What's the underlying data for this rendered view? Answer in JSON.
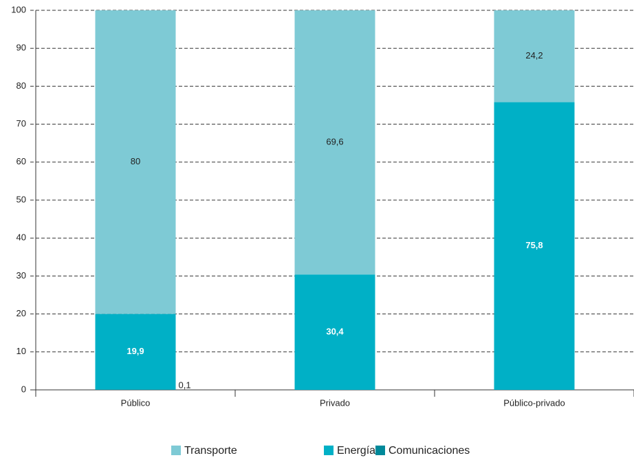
{
  "chart_data": {
    "type": "stacked-bar",
    "categories": [
      "Público",
      "Privado",
      "Público-privado"
    ],
    "series": [
      {
        "name": "Transporte",
        "color": "#7ecad5",
        "values": [
          80,
          69.6,
          24.2
        ],
        "value_labels": [
          "80",
          "69,6",
          "24,2"
        ]
      },
      {
        "name": "Energía",
        "color": "#00b0c6",
        "values": [
          19.9,
          30.4,
          75.8
        ],
        "value_labels": [
          "19,9",
          "30,4",
          "75,8"
        ]
      },
      {
        "name": "Comunicaciones",
        "color": "#00899a",
        "values": [
          0.1,
          0,
          0
        ],
        "value_labels": [
          "0,1",
          null,
          null
        ]
      }
    ],
    "ylim": [
      0,
      100
    ],
    "yticks": [
      0,
      10,
      20,
      30,
      40,
      50,
      60,
      70,
      80,
      90,
      100
    ],
    "grid": true
  }
}
